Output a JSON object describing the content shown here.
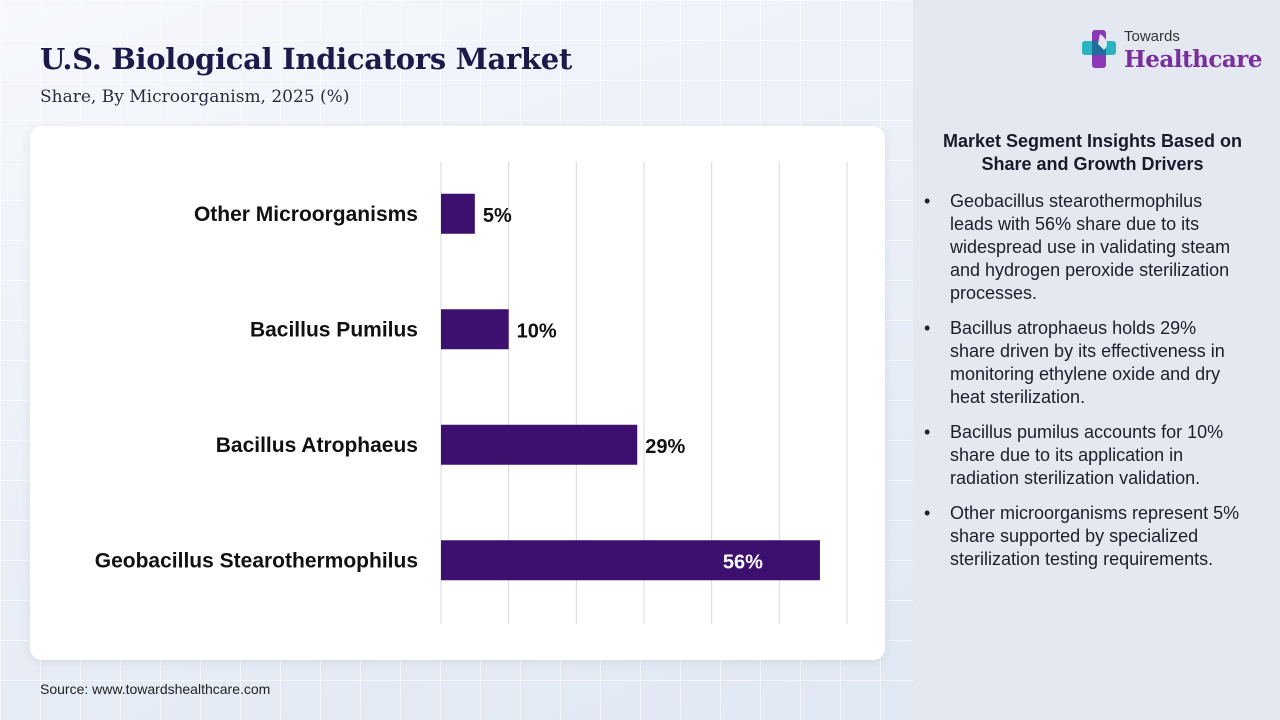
{
  "header": {
    "title": "U.S. Biological Indicators Market",
    "subtitle": "Share, By Microorganism, 2025 (%)"
  },
  "logo": {
    "line1": "Towards",
    "line2": "Healthcare",
    "icon": "cross-plus-logo-icon"
  },
  "source": "Source: www.towardshealthcare.com",
  "chart_data": {
    "type": "bar",
    "orientation": "horizontal",
    "categories": [
      "Other Microorganisms",
      "Bacillus Pumilus",
      "Bacillus Atrophaeus",
      "Geobacillus Stearothermophilus"
    ],
    "values": [
      5,
      10,
      29,
      56
    ],
    "data_labels": [
      "5%",
      "10%",
      "29%",
      "56%"
    ],
    "title": "",
    "xlabel": "",
    "ylabel": "",
    "xlim": [
      0,
      60
    ],
    "grid": "vertical",
    "bar_color": "#3d0f6e"
  },
  "insights": {
    "heading": "Market Segment Insights Based on Share and Growth Drivers",
    "items": [
      "Geobacillus stearothermophilus leads with 56% share due to its widespread use in validating steam and hydrogen peroxide sterilization processes.",
      "Bacillus atrophaeus holds 29% share driven by its effectiveness in monitoring ethylene oxide and dry heat sterilization.",
      "Bacillus pumilus accounts for 10% share due to its application in radiation sterilization validation.",
      "Other microorganisms represent 5% share supported by specialized sterilization testing requirements."
    ]
  }
}
